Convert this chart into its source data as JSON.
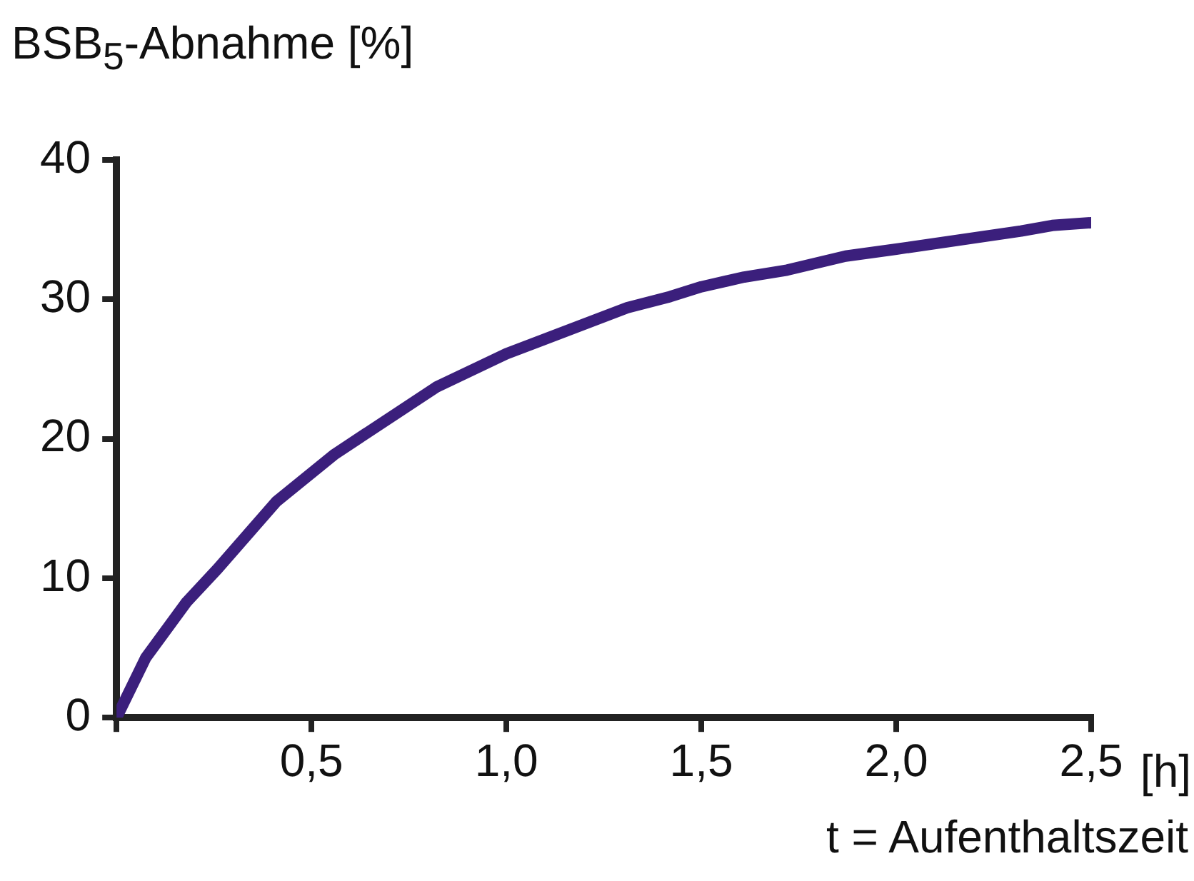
{
  "chart_data": {
    "type": "line",
    "ylabel": "BSB$_{5}$-Abnahme [%]",
    "xlabel": "t = Aufenthaltszeit",
    "annotations": [
      "[h]"
    ],
    "x": [
      0,
      0.075,
      0.18,
      0.26,
      0.41,
      0.56,
      0.82,
      1.0,
      1.31,
      1.42,
      1.5,
      1.61,
      1.72,
      1.87,
      2.0,
      2.32,
      2.4,
      2.5
    ],
    "series": [
      {
        "color": "#3b1f7c",
        "values": [
          0,
          4.3,
          8.3,
          10.7,
          15.5,
          18.9,
          23.7,
          26.1,
          29.4,
          30.2,
          30.9,
          31.6,
          32.1,
          33.1,
          33.6,
          34.9,
          35.3,
          35.5
        ]
      }
    ],
    "xlim": [
      0,
      2.5
    ],
    "xticks": [
      {
        "value": 0,
        "label": null
      },
      {
        "value": 0.5,
        "label": "0,5"
      },
      {
        "value": 1,
        "label": "1,0"
      },
      {
        "value": 1.5,
        "label": "1,5"
      },
      {
        "value": 2,
        "label": "2,0"
      },
      {
        "value": 2.5,
        "label": "2,5"
      }
    ],
    "ylim": [
      0,
      40
    ],
    "yticks": [
      0,
      10,
      20,
      30,
      40
    ],
    "grid": false,
    "legend": false,
    "marker": "none",
    "line_style": "solid"
  }
}
